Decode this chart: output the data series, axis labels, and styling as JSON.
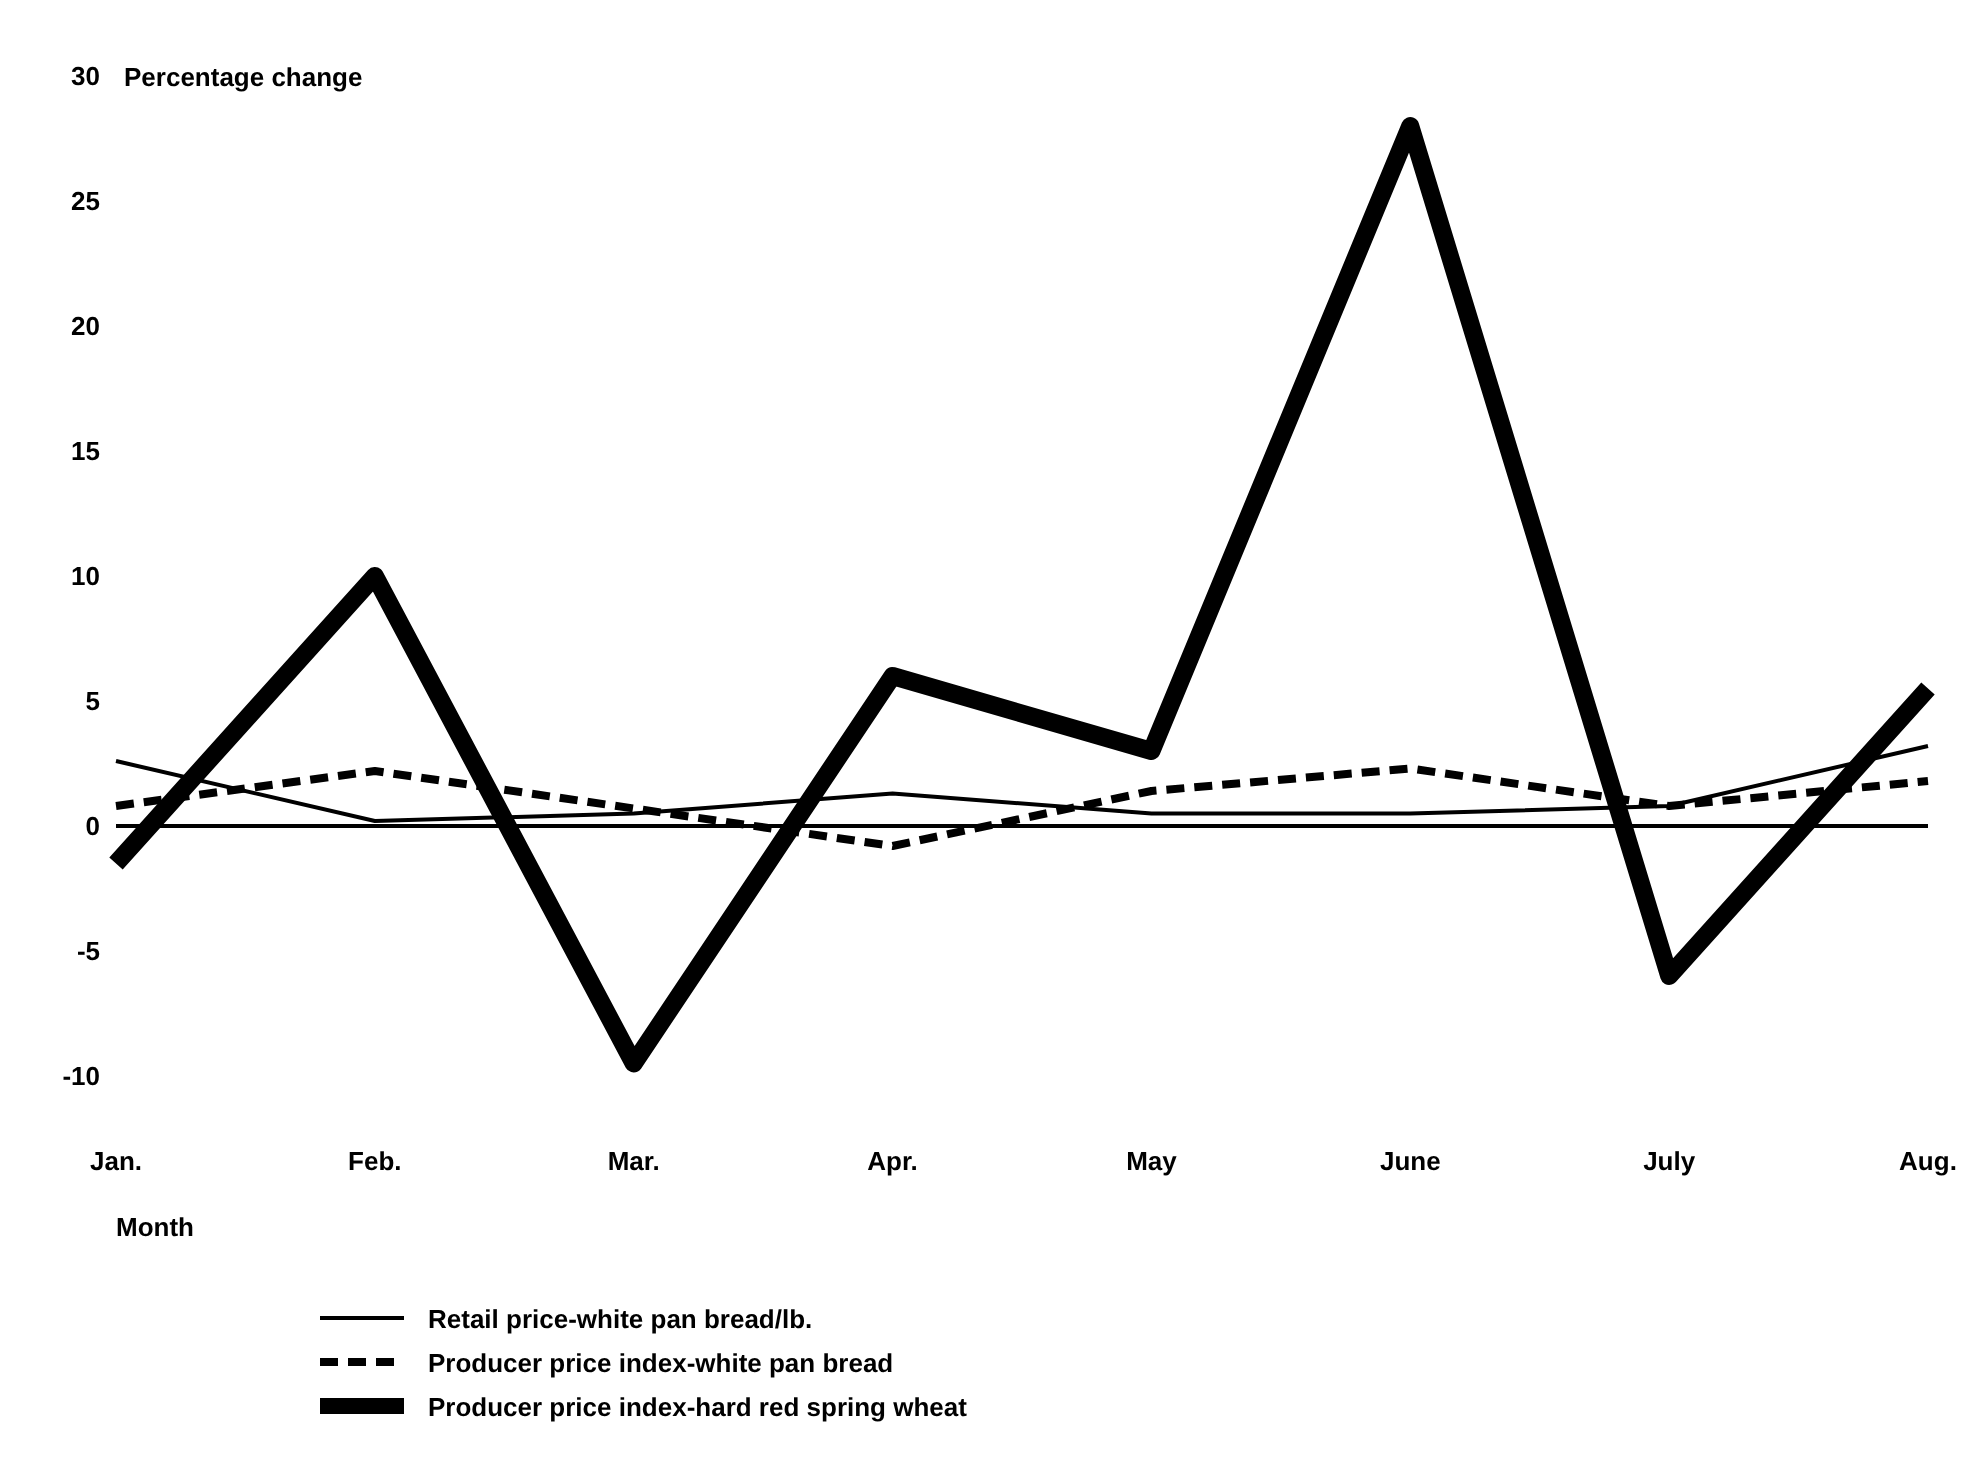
{
  "chart_data": {
    "type": "line",
    "ylabel": "Percentage change",
    "xlabel": "Month",
    "categories": [
      "Jan.",
      "Feb.",
      "Mar.",
      "Apr.",
      "May",
      "June",
      "July",
      "Aug."
    ],
    "series": [
      {
        "name": "Retail price-white pan bread/lb.",
        "color": "#000000",
        "line_style": "solid",
        "values": [
          2.6,
          0.2,
          0.5,
          1.3,
          0.5,
          0.5,
          0.8,
          3.2
        ]
      },
      {
        "name": "Producer price index-white pan bread",
        "color": "#000000",
        "line_style": "dashed",
        "values": [
          0.8,
          2.2,
          0.7,
          -0.8,
          1.4,
          2.3,
          0.8,
          1.8
        ]
      },
      {
        "name": "Producer price index-hard red spring wheat",
        "color": "#000000",
        "line_style": "solid",
        "values": [
          -1.5,
          10,
          -9.5,
          6,
          3,
          28,
          -6,
          5.5
        ]
      }
    ],
    "ylim": [
      -10,
      30
    ],
    "yticks": [
      -10,
      -5,
      0,
      5,
      10,
      15,
      20,
      25,
      30
    ],
    "ref_lines": [
      {
        "axis": "y",
        "value": 0,
        "color": "#000000"
      }
    ],
    "grid": false,
    "legend": "bottom",
    "marker": "none"
  }
}
